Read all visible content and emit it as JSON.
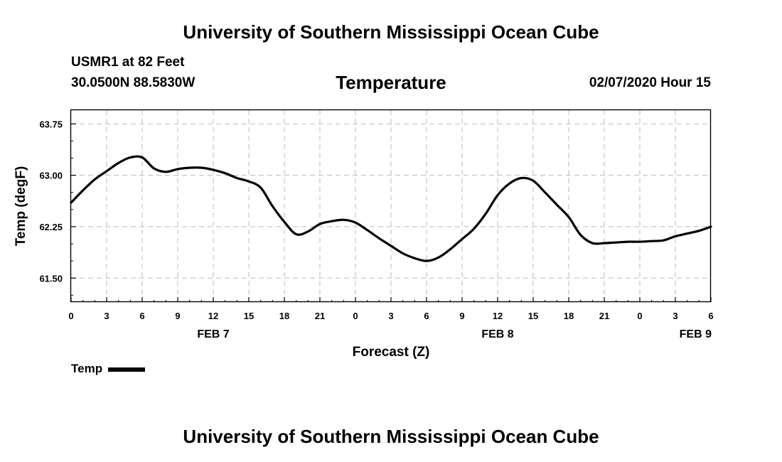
{
  "header": {
    "title": "University of Southern Mississippi Ocean Cube",
    "station": "USMR1 at 82 Feet",
    "coords": "30.0500N 88.5830W",
    "variable": "Temperature",
    "datetime": "02/07/2020 Hour 15"
  },
  "footer": {
    "title": "University of Southern Mississippi Ocean Cube"
  },
  "legend": {
    "label": "Temp"
  },
  "chart_data": {
    "type": "line",
    "title": "Temperature",
    "xlabel": "Forecast (Z)",
    "ylabel": "Temp (degF)",
    "xlim": [
      0,
      54
    ],
    "ylim": [
      61.15,
      63.95
    ],
    "yticks": [
      61.5,
      62.25,
      63.0,
      63.75
    ],
    "ytick_labels": [
      "61.50",
      "62.25",
      "63.00",
      "63.75"
    ],
    "xticks": [
      0,
      3,
      6,
      9,
      12,
      15,
      18,
      21,
      24,
      27,
      30,
      33,
      36,
      39,
      42,
      45,
      48,
      51,
      54
    ],
    "xtick_labels": [
      "0",
      "3",
      "6",
      "9",
      "12",
      "15",
      "18",
      "21",
      "0",
      "3",
      "6",
      "9",
      "12",
      "15",
      "18",
      "21",
      "0",
      "3",
      "6"
    ],
    "date_labels": [
      {
        "x": 12,
        "label": "FEB 7"
      },
      {
        "x": 36,
        "label": "FEB 8"
      },
      {
        "x": 52.7,
        "label": "FEB 9"
      }
    ],
    "grid": true,
    "legend_position": "bottom-left",
    "line_color": "#000000",
    "series": [
      {
        "name": "Temp",
        "x": [
          0,
          1,
          2,
          3,
          4,
          5,
          6,
          7,
          8,
          9,
          10,
          11,
          12,
          13,
          14,
          15,
          16,
          17,
          18,
          19,
          20,
          21,
          22,
          23,
          24,
          25,
          26,
          27,
          28,
          29,
          30,
          31,
          32,
          33,
          34,
          35,
          36,
          37,
          38,
          39,
          40,
          41,
          42,
          43,
          44,
          45,
          46,
          47,
          48,
          49,
          50,
          51,
          52,
          53,
          54
        ],
        "values": [
          62.6,
          62.78,
          62.94,
          63.06,
          63.18,
          63.26,
          63.26,
          63.1,
          63.05,
          63.09,
          63.11,
          63.11,
          63.08,
          63.03,
          62.96,
          62.91,
          62.82,
          62.55,
          62.32,
          62.14,
          62.18,
          62.29,
          62.33,
          62.35,
          62.31,
          62.2,
          62.08,
          61.97,
          61.86,
          61.79,
          61.75,
          61.8,
          61.92,
          62.07,
          62.22,
          62.44,
          62.71,
          62.88,
          62.96,
          62.92,
          62.75,
          62.57,
          62.39,
          62.13,
          62.01,
          62.01,
          62.02,
          62.03,
          62.03,
          62.04,
          62.05,
          62.11,
          62.15,
          62.19,
          62.25
        ]
      }
    ]
  }
}
